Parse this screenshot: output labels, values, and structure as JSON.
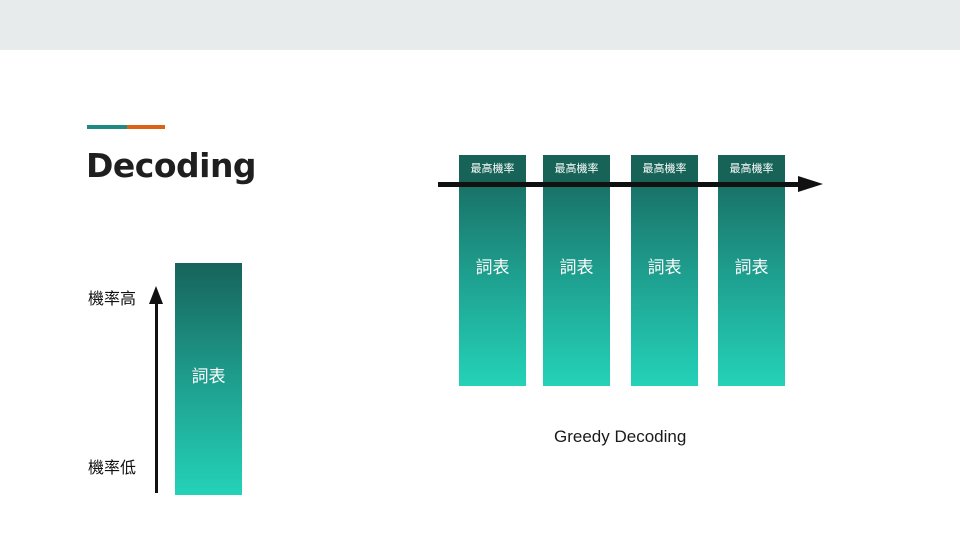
{
  "slide": {
    "title": "Decoding",
    "colors": {
      "accent_teal": "#1f8a84",
      "accent_orange": "#d96415",
      "column_top": "#17635b",
      "column_bottom": "#24d2b8",
      "top_bar": "#e8ebec"
    }
  },
  "left_diagram": {
    "vocab_label": "詞表",
    "prob_high_label": "機率高",
    "prob_low_label": "機率低"
  },
  "greedy_diagram": {
    "steps": [
      {
        "header": "最高機率",
        "vocab_label": "詞表"
      },
      {
        "header": "最高機率",
        "vocab_label": "詞表"
      },
      {
        "header": "最高機率",
        "vocab_label": "詞表"
      },
      {
        "header": "最高機率",
        "vocab_label": "詞表"
      }
    ],
    "caption": "Greedy Decoding"
  }
}
